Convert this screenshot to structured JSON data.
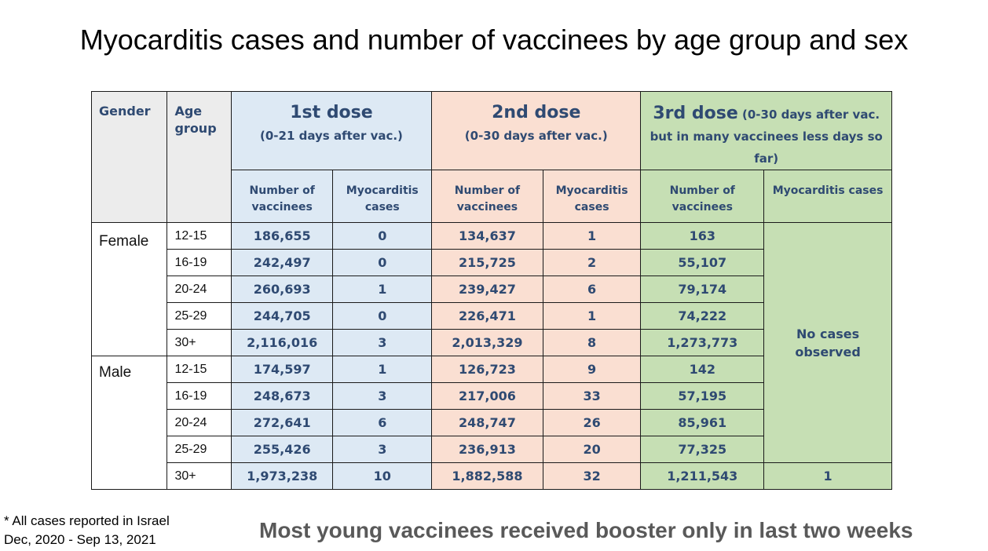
{
  "title": "Myocarditis cases and number of vaccinees by age group and sex",
  "headers": {
    "gender": "Gender",
    "age_group": "Age group",
    "dose1_title": "1st dose",
    "dose1_sub": "(0-21 days after vac.)",
    "dose2_title": "2nd dose",
    "dose2_sub": "(0-30 days after vac.)",
    "dose3_title": "3rd dose",
    "dose3_sub": " (0-30 days after vac. but in many vaccinees less days so far)",
    "vaccinees": "Number of vaccinees",
    "myocarditis": "Myocarditis cases",
    "dose3_myocarditis": "Myocarditis cases"
  },
  "groups": [
    {
      "gender": "Female",
      "rows": [
        {
          "age": "12-15",
          "d1_vac": "186,655",
          "d1_myo": "0",
          "d2_vac": "134,637",
          "d2_myo": "1",
          "d3_vac": "163"
        },
        {
          "age": "16-19",
          "d1_vac": "242,497",
          "d1_myo": "0",
          "d2_vac": "215,725",
          "d2_myo": "2",
          "d3_vac": "55,107"
        },
        {
          "age": "20-24",
          "d1_vac": "260,693",
          "d1_myo": "1",
          "d2_vac": "239,427",
          "d2_myo": "6",
          "d3_vac": "79,174"
        },
        {
          "age": "25-29",
          "d1_vac": "244,705",
          "d1_myo": "0",
          "d2_vac": "226,471",
          "d2_myo": "1",
          "d3_vac": "74,222"
        },
        {
          "age": "30+",
          "d1_vac": "2,116,016",
          "d1_myo": "3",
          "d2_vac": "2,013,329",
          "d2_myo": "8",
          "d3_vac": "1,273,773"
        }
      ]
    },
    {
      "gender": "Male",
      "rows": [
        {
          "age": "12-15",
          "d1_vac": "174,597",
          "d1_myo": "1",
          "d2_vac": "126,723",
          "d2_myo": "9",
          "d3_vac": "142"
        },
        {
          "age": "16-19",
          "d1_vac": "248,673",
          "d1_myo": "3",
          "d2_vac": "217,006",
          "d2_myo": "33",
          "d3_vac": "57,195"
        },
        {
          "age": "20-24",
          "d1_vac": "272,641",
          "d1_myo": "6",
          "d2_vac": "248,747",
          "d2_myo": "26",
          "d3_vac": "85,961"
        },
        {
          "age": "25-29",
          "d1_vac": "255,426",
          "d1_myo": "3",
          "d2_vac": "236,913",
          "d2_myo": "20",
          "d3_vac": "77,325"
        },
        {
          "age": "30+",
          "d1_vac": "1,973,238",
          "d1_myo": "10",
          "d2_vac": "1,882,588",
          "d2_myo": "32",
          "d3_vac": "1,211,543",
          "d3_myo": "1"
        }
      ]
    }
  ],
  "no_cases_text": "No cases observed",
  "footnote_line1": "* All cases reported in Israel",
  "footnote_line2": "Dec, 2020 - Sep 13, 2021",
  "bottom_note": "Most young vaccinees received booster only in last two weeks",
  "colors": {
    "dose1_bg": "#dde9f4",
    "dose2_bg": "#fadfd2",
    "dose3_bg": "#c6dfb4",
    "header_text": "#2f4a72",
    "gender_age_header_bg": "#ececec"
  }
}
